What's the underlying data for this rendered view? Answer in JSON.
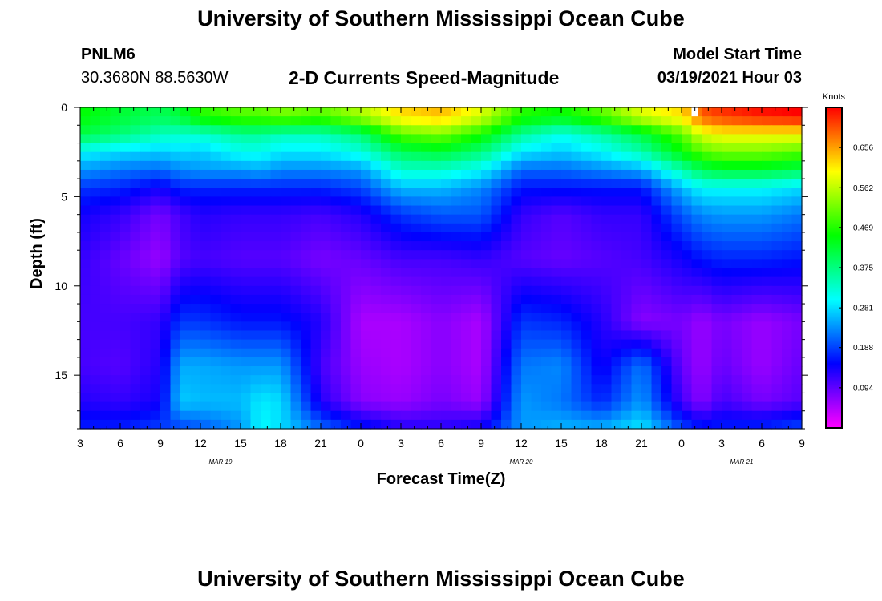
{
  "header": {
    "title": "University of Southern Mississippi Ocean Cube",
    "footer_title": "University of Southern Mississippi Ocean Cube",
    "station_id": "PNLM6",
    "station_coords": "30.3680N 88.5630W",
    "model_start_label": "Model Start Time",
    "model_start_value": "03/19/2021 Hour 03"
  },
  "chart_data": {
    "type": "heatmap",
    "title": "2-D Currents Speed-Magnitude",
    "xlabel": "Forecast Time(Z)",
    "ylabel": "Depth (ft)",
    "x_range_hours": [
      0,
      54
    ],
    "y_range_ft": [
      0,
      18
    ],
    "x_tick_labels": [
      "3",
      "6",
      "9",
      "12",
      "15",
      "18",
      "21",
      "0",
      "3",
      "6",
      "9",
      "12",
      "15",
      "18",
      "21",
      "0",
      "3",
      "6",
      "9"
    ],
    "date_labels": [
      {
        "label": "MAR 19",
        "hour": 10.5
      },
      {
        "label": "MAR 20",
        "hour": 33
      },
      {
        "label": "MAR 21",
        "hour": 49.5
      }
    ],
    "y_ticks": [
      0,
      5,
      10,
      15
    ],
    "colorbar": {
      "unit": "Knots",
      "range": [
        0,
        0.75
      ],
      "tick_values": [
        0.094,
        0.188,
        0.281,
        0.375,
        0.469,
        0.562,
        0.656
      ],
      "tick_labels": [
        "0.094",
        "0.188",
        "0.281",
        "0.375",
        "0.469",
        "0.562",
        "0.656"
      ],
      "colors": [
        "#ff00ff",
        "#0000ff",
        "#00ffff",
        "#00ff00",
        "#ffff00",
        "#ff0000"
      ]
    },
    "depth_levels_ft": [
      0.5,
      1.5,
      2.5,
      3.5,
      4.5,
      6,
      8.5,
      12,
      14.5,
      16.5,
      17.75
    ],
    "time_control_hours": [
      0,
      3,
      6,
      7.5,
      9,
      12,
      13.5,
      15,
      18,
      21,
      24,
      27,
      30,
      33,
      36,
      39,
      42,
      45,
      46.5,
      48,
      51,
      54
    ],
    "speed_knots": [
      [
        0.45,
        0.42,
        0.4,
        0.42,
        0.47,
        0.5,
        0.5,
        0.52,
        0.5,
        0.55,
        0.62,
        0.64,
        0.58,
        0.47,
        0.45,
        0.5,
        0.58,
        0.62,
        0.7,
        0.72,
        0.74,
        0.75
      ],
      [
        0.41,
        0.38,
        0.34,
        0.33,
        0.33,
        0.36,
        0.36,
        0.34,
        0.34,
        0.38,
        0.5,
        0.52,
        0.46,
        0.36,
        0.31,
        0.35,
        0.41,
        0.5,
        0.58,
        0.6,
        0.6,
        0.6
      ],
      [
        0.3,
        0.28,
        0.27,
        0.28,
        0.27,
        0.31,
        0.31,
        0.29,
        0.29,
        0.32,
        0.4,
        0.42,
        0.38,
        0.29,
        0.27,
        0.3,
        0.35,
        0.45,
        0.5,
        0.52,
        0.52,
        0.5
      ],
      [
        0.24,
        0.22,
        0.21,
        0.23,
        0.24,
        0.24,
        0.25,
        0.23,
        0.23,
        0.24,
        0.33,
        0.33,
        0.3,
        0.21,
        0.21,
        0.23,
        0.25,
        0.35,
        0.4,
        0.42,
        0.42,
        0.4
      ],
      [
        0.18,
        0.17,
        0.14,
        0.17,
        0.17,
        0.17,
        0.17,
        0.17,
        0.17,
        0.19,
        0.26,
        0.26,
        0.23,
        0.16,
        0.16,
        0.16,
        0.16,
        0.26,
        0.3,
        0.3,
        0.3,
        0.28
      ],
      [
        0.14,
        0.12,
        0.08,
        0.11,
        0.13,
        0.12,
        0.12,
        0.12,
        0.11,
        0.13,
        0.18,
        0.2,
        0.2,
        0.12,
        0.1,
        0.12,
        0.12,
        0.2,
        0.23,
        0.24,
        0.24,
        0.22
      ],
      [
        0.12,
        0.09,
        0.06,
        0.1,
        0.11,
        0.1,
        0.1,
        0.1,
        0.08,
        0.09,
        0.11,
        0.11,
        0.12,
        0.1,
        0.09,
        0.1,
        0.11,
        0.14,
        0.16,
        0.17,
        0.17,
        0.16
      ],
      [
        0.11,
        0.11,
        0.12,
        0.18,
        0.18,
        0.16,
        0.16,
        0.16,
        0.13,
        0.05,
        0.05,
        0.07,
        0.05,
        0.18,
        0.17,
        0.13,
        0.07,
        0.08,
        0.06,
        0.08,
        0.06,
        0.08
      ],
      [
        0.11,
        0.1,
        0.13,
        0.25,
        0.25,
        0.24,
        0.24,
        0.24,
        0.11,
        0.06,
        0.05,
        0.07,
        0.05,
        0.22,
        0.23,
        0.14,
        0.22,
        0.09,
        0.06,
        0.09,
        0.06,
        0.09
      ],
      [
        0.13,
        0.12,
        0.14,
        0.27,
        0.26,
        0.26,
        0.29,
        0.28,
        0.13,
        0.07,
        0.06,
        0.08,
        0.06,
        0.24,
        0.22,
        0.17,
        0.24,
        0.11,
        0.07,
        0.11,
        0.08,
        0.1
      ],
      [
        0.16,
        0.16,
        0.18,
        0.2,
        0.21,
        0.24,
        0.3,
        0.28,
        0.2,
        0.15,
        0.12,
        0.12,
        0.13,
        0.24,
        0.25,
        0.24,
        0.28,
        0.18,
        0.15,
        0.16,
        0.16,
        0.18
      ]
    ],
    "missing_cells": [
      {
        "hour": 46,
        "depth_ft": 0.25
      }
    ]
  }
}
